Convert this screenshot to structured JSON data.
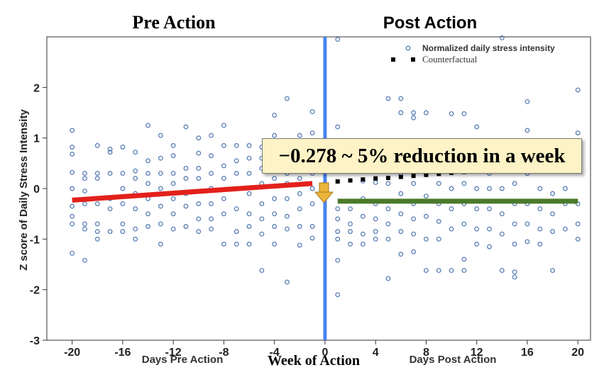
{
  "headings": {
    "left": "Pre Action",
    "right": "Post Action"
  },
  "callout": {
    "text": "−0.278 ~ 5% reduction in a week"
  },
  "legend": [
    {
      "label": "Normalized daily stress intensity",
      "marker": "circle"
    },
    {
      "label": "Counterfactual",
      "marker": "square"
    }
  ],
  "colors": {
    "points": "#5b7fb5",
    "action_line": "#4b84f0",
    "pre_trend": "#e3201b",
    "post_trend": "#4a7a2a",
    "counterfactual": "#000000",
    "arrow": "#e9b43a",
    "callout_bg": "#fdf3c6"
  },
  "chart_data": {
    "type": "scatter",
    "xlabel": "Week of Action",
    "xlabel_left": "Days Pre Action",
    "xlabel_right": "Days Post Action",
    "ylabel": "Z score of Daily Stress Intensity",
    "xlim": [
      -22,
      21
    ],
    "ylim": [
      -3,
      3
    ],
    "xticks": [
      -20,
      -16,
      -12,
      -8,
      -4,
      0,
      4,
      8,
      12,
      16,
      20
    ],
    "xtick_labels": [
      "-20",
      "-16",
      "-12",
      "-8",
      "-4",
      "0",
      "4",
      "8",
      "12",
      "16",
      "20"
    ],
    "yticks": [
      -3,
      -2,
      -1,
      0,
      1,
      2
    ],
    "ytick_labels": [
      "-3",
      "-2",
      "-1",
      "0",
      "1",
      "2"
    ],
    "action_x": 0,
    "series": [
      {
        "name": "Normalized daily stress intensity",
        "type": "scatter",
        "points": [
          [
            -20,
            1.15
          ],
          [
            -20,
            0.82
          ],
          [
            -20,
            0.68
          ],
          [
            -20,
            0.32
          ],
          [
            -20,
            0.0
          ],
          [
            -20,
            -0.35
          ],
          [
            -20,
            -0.55
          ],
          [
            -20,
            -0.7
          ],
          [
            -20,
            -1.28
          ],
          [
            -19,
            0.3
          ],
          [
            -19,
            0.2
          ],
          [
            -19,
            -0.05
          ],
          [
            -19,
            -0.3
          ],
          [
            -19,
            -0.7
          ],
          [
            -19,
            -0.8
          ],
          [
            -19,
            -1.42
          ],
          [
            -18,
            0.85
          ],
          [
            -18,
            0.3
          ],
          [
            -18,
            0.2
          ],
          [
            -18,
            -0.3
          ],
          [
            -18,
            -0.7
          ],
          [
            -18,
            -0.85
          ],
          [
            -18,
            -1.0
          ],
          [
            -17,
            0.78
          ],
          [
            -17,
            0.72
          ],
          [
            -17,
            0.3
          ],
          [
            -17,
            -0.2
          ],
          [
            -17,
            -0.4
          ],
          [
            -17,
            -0.85
          ],
          [
            -16,
            0.82
          ],
          [
            -16,
            0.3
          ],
          [
            -16,
            0.0
          ],
          [
            -16,
            -0.3
          ],
          [
            -16,
            -0.7
          ],
          [
            -16,
            -0.85
          ],
          [
            -15,
            0.72
          ],
          [
            -15,
            0.35
          ],
          [
            -15,
            0.2
          ],
          [
            -15,
            -0.1
          ],
          [
            -15,
            -0.4
          ],
          [
            -15,
            -0.8
          ],
          [
            -15,
            -1.0
          ],
          [
            -14,
            1.25
          ],
          [
            -14,
            0.55
          ],
          [
            -14,
            0.3
          ],
          [
            -14,
            0.1
          ],
          [
            -14,
            -0.2
          ],
          [
            -14,
            -0.5
          ],
          [
            -14,
            -0.75
          ],
          [
            -13,
            1.05
          ],
          [
            -13,
            0.6
          ],
          [
            -13,
            0.3
          ],
          [
            -13,
            0.0
          ],
          [
            -13,
            -0.35
          ],
          [
            -13,
            -0.7
          ],
          [
            -13,
            -1.1
          ],
          [
            -12,
            0.85
          ],
          [
            -12,
            0.65
          ],
          [
            -12,
            0.3
          ],
          [
            -12,
            0.1
          ],
          [
            -12,
            -0.2
          ],
          [
            -12,
            -0.5
          ],
          [
            -12,
            -0.8
          ],
          [
            -11,
            1.22
          ],
          [
            -11,
            0.4
          ],
          [
            -11,
            0.2
          ],
          [
            -11,
            -0.1
          ],
          [
            -11,
            -0.35
          ],
          [
            -11,
            -0.75
          ],
          [
            -10,
            1.0
          ],
          [
            -10,
            0.7
          ],
          [
            -10,
            0.4
          ],
          [
            -10,
            0.2
          ],
          [
            -10,
            -0.3
          ],
          [
            -10,
            -0.6
          ],
          [
            -10,
            -0.85
          ],
          [
            -9,
            1.05
          ],
          [
            -9,
            0.65
          ],
          [
            -9,
            0.3
          ],
          [
            -9,
            0.0
          ],
          [
            -9,
            -0.3
          ],
          [
            -9,
            -0.6
          ],
          [
            -9,
            -0.8
          ],
          [
            -8,
            1.25
          ],
          [
            -8,
            0.85
          ],
          [
            -8,
            0.45
          ],
          [
            -8,
            0.2
          ],
          [
            -8,
            -0.2
          ],
          [
            -8,
            -0.5
          ],
          [
            -8,
            -1.1
          ],
          [
            -7,
            0.85
          ],
          [
            -7,
            0.55
          ],
          [
            -7,
            0.3
          ],
          [
            -7,
            0.0
          ],
          [
            -7,
            -0.4
          ],
          [
            -7,
            -0.85
          ],
          [
            -7,
            -1.1
          ],
          [
            -6,
            0.85
          ],
          [
            -6,
            0.6
          ],
          [
            -6,
            0.3
          ],
          [
            -6,
            -0.1
          ],
          [
            -6,
            -0.5
          ],
          [
            -6,
            -0.75
          ],
          [
            -6,
            -1.1
          ],
          [
            -5,
            0.82
          ],
          [
            -5,
            0.6
          ],
          [
            -5,
            0.4
          ],
          [
            -5,
            0.1
          ],
          [
            -5,
            -0.3
          ],
          [
            -5,
            -0.6
          ],
          [
            -5,
            -0.9
          ],
          [
            -5,
            -1.62
          ],
          [
            -4,
            1.45
          ],
          [
            -4,
            1.05
          ],
          [
            -4,
            0.55
          ],
          [
            -4,
            0.4
          ],
          [
            -4,
            0.2
          ],
          [
            -4,
            -0.2
          ],
          [
            -4,
            -0.5
          ],
          [
            -4,
            -0.75
          ],
          [
            -4,
            -1.1
          ],
          [
            -3,
            1.78
          ],
          [
            -3,
            0.7
          ],
          [
            -3,
            0.5
          ],
          [
            -3,
            0.3
          ],
          [
            -3,
            0.1
          ],
          [
            -3,
            -0.2
          ],
          [
            -3,
            -0.55
          ],
          [
            -3,
            -0.8
          ],
          [
            -3,
            -1.85
          ],
          [
            -2,
            1.05
          ],
          [
            -2,
            0.5
          ],
          [
            -2,
            0.2
          ],
          [
            -2,
            -0.1
          ],
          [
            -2,
            -0.4
          ],
          [
            -2,
            -0.75
          ],
          [
            -2,
            -1.12
          ],
          [
            -1,
            1.52
          ],
          [
            -1,
            1.1
          ],
          [
            -1,
            0.3
          ],
          [
            -1,
            0.0
          ],
          [
            -1,
            -0.3
          ],
          [
            -1,
            -0.75
          ],
          [
            -1,
            -0.98
          ],
          [
            1,
            2.95
          ],
          [
            1,
            1.22
          ],
          [
            1,
            0.35
          ],
          [
            1,
            -0.4
          ],
          [
            1,
            -0.6
          ],
          [
            1,
            -0.85
          ],
          [
            1,
            -1.0
          ],
          [
            1,
            -1.42
          ],
          [
            1,
            -2.1
          ],
          [
            2,
            -0.7
          ],
          [
            2,
            -0.85
          ],
          [
            2,
            -1.1
          ],
          [
            2,
            -0.4
          ],
          [
            3,
            0.15
          ],
          [
            3,
            -0.2
          ],
          [
            3,
            -0.55
          ],
          [
            3,
            -0.9
          ],
          [
            3,
            -1.1
          ],
          [
            4,
            0.12
          ],
          [
            4,
            -0.3
          ],
          [
            4,
            -0.6
          ],
          [
            4,
            -0.85
          ],
          [
            4,
            -1.0
          ],
          [
            5,
            1.78
          ],
          [
            5,
            0.1
          ],
          [
            5,
            -0.4
          ],
          [
            5,
            -0.7
          ],
          [
            5,
            -1.0
          ],
          [
            5,
            -1.78
          ],
          [
            6,
            1.78
          ],
          [
            6,
            1.5
          ],
          [
            6,
            0.3
          ],
          [
            6,
            -0.1
          ],
          [
            6,
            -0.5
          ],
          [
            6,
            -0.85
          ],
          [
            6,
            -1.3
          ],
          [
            7,
            1.5
          ],
          [
            7,
            1.4
          ],
          [
            7,
            0.1
          ],
          [
            7,
            -0.3
          ],
          [
            7,
            -0.6
          ],
          [
            7,
            -0.9
          ],
          [
            7,
            -1.25
          ],
          [
            8,
            1.5
          ],
          [
            8,
            0.3
          ],
          [
            8,
            -0.15
          ],
          [
            8,
            -0.55
          ],
          [
            8,
            -1.0
          ],
          [
            8,
            -1.62
          ],
          [
            9,
            0.8
          ],
          [
            9,
            0.1
          ],
          [
            9,
            -0.3
          ],
          [
            9,
            -0.65
          ],
          [
            9,
            -1.0
          ],
          [
            9,
            -1.62
          ],
          [
            10,
            1.48
          ],
          [
            10,
            0.9
          ],
          [
            10,
            0.0
          ],
          [
            10,
            -0.4
          ],
          [
            10,
            -0.8
          ],
          [
            10,
            -1.62
          ],
          [
            11,
            1.48
          ],
          [
            11,
            0.7
          ],
          [
            11,
            0.1
          ],
          [
            11,
            -0.3
          ],
          [
            11,
            -0.7
          ],
          [
            11,
            -1.4
          ],
          [
            11,
            -1.62
          ],
          [
            12,
            1.22
          ],
          [
            12,
            0.5
          ],
          [
            12,
            0.0
          ],
          [
            12,
            -0.4
          ],
          [
            12,
            -0.8
          ],
          [
            12,
            -1.1
          ],
          [
            13,
            0.7
          ],
          [
            13,
            0.3
          ],
          [
            13,
            0.0
          ],
          [
            13,
            -0.4
          ],
          [
            13,
            -0.8
          ],
          [
            13,
            -1.15
          ],
          [
            14,
            2.98
          ],
          [
            14,
            0.9
          ],
          [
            14,
            0.0
          ],
          [
            14,
            -0.5
          ],
          [
            14,
            -0.9
          ],
          [
            14,
            -1.62
          ],
          [
            15,
            0.5
          ],
          [
            15,
            0.1
          ],
          [
            15,
            -0.3
          ],
          [
            15,
            -0.7
          ],
          [
            15,
            -1.1
          ],
          [
            15,
            -1.65
          ],
          [
            15,
            -1.75
          ],
          [
            16,
            1.72
          ],
          [
            16,
            1.15
          ],
          [
            16,
            0.3
          ],
          [
            16,
            -0.3
          ],
          [
            16,
            -0.7
          ],
          [
            16,
            -1.05
          ],
          [
            17,
            0.75
          ],
          [
            17,
            0.0
          ],
          [
            17,
            -0.4
          ],
          [
            17,
            -0.8
          ],
          [
            17,
            -1.1
          ],
          [
            18,
            0.7
          ],
          [
            18,
            0.4
          ],
          [
            18,
            -0.1
          ],
          [
            18,
            -0.5
          ],
          [
            18,
            -0.85
          ],
          [
            18,
            -1.62
          ],
          [
            19,
            0.4
          ],
          [
            19,
            0.0
          ],
          [
            19,
            -0.3
          ],
          [
            19,
            -0.8
          ],
          [
            20,
            1.95
          ],
          [
            20,
            1.1
          ],
          [
            20,
            -0.3
          ],
          [
            20,
            -0.7
          ],
          [
            20,
            -1.0
          ]
        ]
      },
      {
        "name": "Counterfactual",
        "type": "scatter",
        "points": [
          [
            1,
            0.14
          ],
          [
            2,
            0.16
          ],
          [
            3,
            0.18
          ],
          [
            4,
            0.2
          ],
          [
            5,
            0.21
          ],
          [
            6,
            0.23
          ],
          [
            7,
            0.25
          ],
          [
            8,
            0.27
          ],
          [
            9,
            0.29
          ],
          [
            10,
            0.31
          ],
          [
            11,
            0.33
          ],
          [
            12,
            0.35
          ]
        ]
      },
      {
        "name": "Pre-action trend",
        "type": "line",
        "points": [
          [
            -20,
            -0.23
          ],
          [
            -1,
            0.1
          ]
        ]
      },
      {
        "name": "Post-action trend",
        "type": "line",
        "points": [
          [
            1,
            -0.25
          ],
          [
            20,
            -0.25
          ]
        ]
      }
    ],
    "legend_position": "top-right",
    "grid": false
  }
}
